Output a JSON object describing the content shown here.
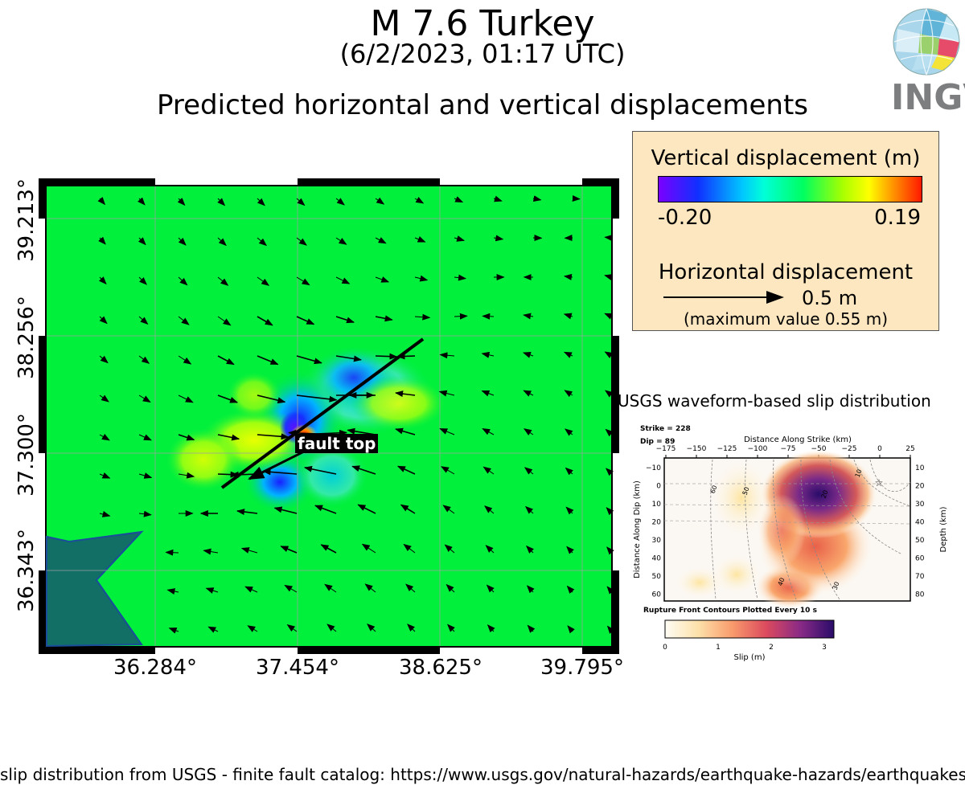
{
  "header": {
    "title": "M 7.6 Turkey",
    "date": "(6/2/2023, 01:17 UTC)",
    "subtitle": "Predicted horizontal and vertical displacements"
  },
  "logo": {
    "text": "INGV"
  },
  "map": {
    "lat_labels": [
      "39.213°",
      "38.256°",
      "37.300°",
      "36.343°"
    ],
    "lon_labels": [
      "36.284°",
      "37.454°",
      "38.625°",
      "39.795°"
    ],
    "fault_label": "fault top",
    "colors": {
      "background_field": "#00f03c",
      "sea": "#116f66",
      "fault": "#000000"
    }
  },
  "legend": {
    "vertical_title": "Vertical displacement (m)",
    "vertical_min": "-0.20",
    "vertical_max": "0.19",
    "horizontal_title": "Horizontal displacement",
    "scale_value": "0.5 m",
    "max_value": "(maximum value 0.55 m)"
  },
  "slip_panel": {
    "title": "USGS waveform-based slip distribution",
    "strike": "Strike = 228",
    "dip": "Dip = 89",
    "x_label": "Distance Along Strike (km)",
    "y_label_left": "Distance Along Dip (km)",
    "y_label_right": "Depth (km)",
    "x_ticks": [
      "−175",
      "−150",
      "−125",
      "−100",
      "−75",
      "−50",
      "−25",
      "0",
      "25"
    ],
    "y_ticks_left": [
      "−10",
      "0",
      "10",
      "20",
      "30",
      "40",
      "50",
      "60"
    ],
    "y_ticks_right": [
      "10",
      "20",
      "30",
      "40",
      "50",
      "60",
      "70",
      "80"
    ],
    "contour_labels": [
      "60",
      "50",
      "40",
      "30",
      "10",
      "20"
    ],
    "contour_note": "Rupture Front Contours Plotted Every 10 s",
    "colorbar_label": "Slip (m)",
    "colorbar_ticks": [
      "0",
      "1",
      "2",
      "3"
    ]
  },
  "footer": "slip distribution from USGS - finite fault catalog: https://www.usgs.gov/natural-hazards/earthquake-hazards/earthquakes"
}
